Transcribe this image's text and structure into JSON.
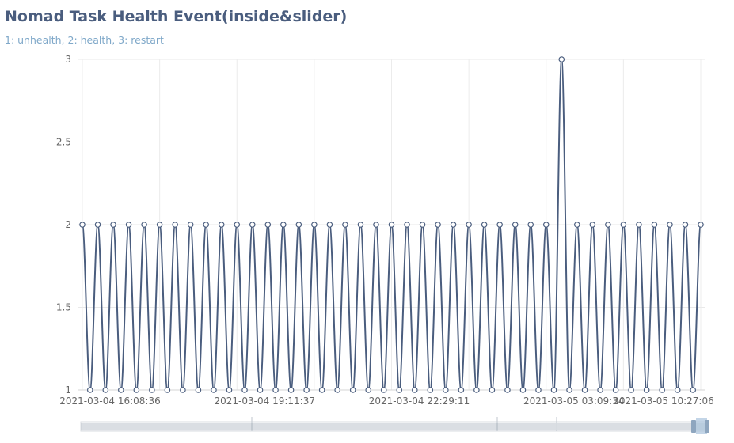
{
  "chart_data": {
    "type": "line",
    "title": "Nomad Task Health Event(inside&slider)",
    "subtitle": "1: unhealth, 2: health, 3: restart",
    "xlabel": "",
    "ylabel": "",
    "ylim": [
      1,
      3
    ],
    "y_ticks": [
      "1",
      "1.5",
      "2",
      "2.5",
      "3"
    ],
    "x_tick_labels": [
      "2021-03-04 16:08:36",
      "2021-03-04 19:11:37",
      "2021-03-04 22:29:11",
      "2021-03-05 03:09:34",
      "2021-03-05 10:27:06"
    ],
    "grid": true,
    "smooth": true,
    "line_color": "#4a5d7e",
    "series": [
      {
        "values": [
          2,
          1,
          2,
          1,
          2,
          1,
          2,
          1,
          2,
          1,
          2,
          1,
          2,
          1,
          2,
          1,
          2,
          1,
          2,
          1,
          2,
          1,
          2,
          1,
          2,
          1,
          2,
          1,
          2,
          1,
          2,
          1,
          2,
          1,
          2,
          1,
          2,
          1,
          2,
          1,
          2,
          1,
          2,
          1,
          2,
          1,
          2,
          1,
          2,
          1,
          2,
          1,
          2,
          1,
          2,
          1,
          2,
          1,
          2,
          1,
          2,
          1,
          3,
          1,
          2,
          1,
          2,
          1,
          2,
          1,
          2,
          1,
          2,
          1,
          2,
          1,
          2,
          1,
          2,
          1,
          2
        ]
      }
    ],
    "data_zoom": {
      "type": "slider",
      "start": 0,
      "end": 100
    }
  }
}
